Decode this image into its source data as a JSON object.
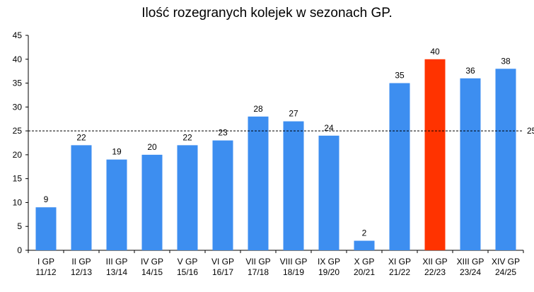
{
  "chart_data": {
    "type": "bar",
    "title": "Ilość rozegranych kolejek w sezonach GP.",
    "categories": [
      [
        "I GP",
        "11/12"
      ],
      [
        "II GP",
        "12/13"
      ],
      [
        "III GP",
        "13/14"
      ],
      [
        "IV GP",
        "14/15"
      ],
      [
        "V GP",
        "15/16"
      ],
      [
        "VI GP",
        "16/17"
      ],
      [
        "VII GP",
        "17/18"
      ],
      [
        "VIII GP",
        "18/19"
      ],
      [
        "IX GP",
        "19/20"
      ],
      [
        "X GP",
        "20/21"
      ],
      [
        "XI GP",
        "21/22"
      ],
      [
        "XII GP",
        "22/23"
      ],
      [
        "XIII GP",
        "23/24"
      ],
      [
        "XIV GP",
        "24/25"
      ]
    ],
    "values": [
      9,
      22,
      19,
      20,
      22,
      23,
      28,
      27,
      24,
      2,
      35,
      40,
      36,
      38
    ],
    "highlight_index": 11,
    "colors": {
      "bar": "#3d8ef0",
      "highlight": "#ff3300",
      "reference_line": "#000000"
    },
    "ylim": [
      0,
      45
    ],
    "yticks": [
      0,
      5,
      10,
      15,
      20,
      25,
      30,
      35,
      40,
      45
    ],
    "reference_line": {
      "value": 25,
      "label": "25",
      "style": "dashed"
    },
    "grid": false,
    "legend": "none"
  }
}
